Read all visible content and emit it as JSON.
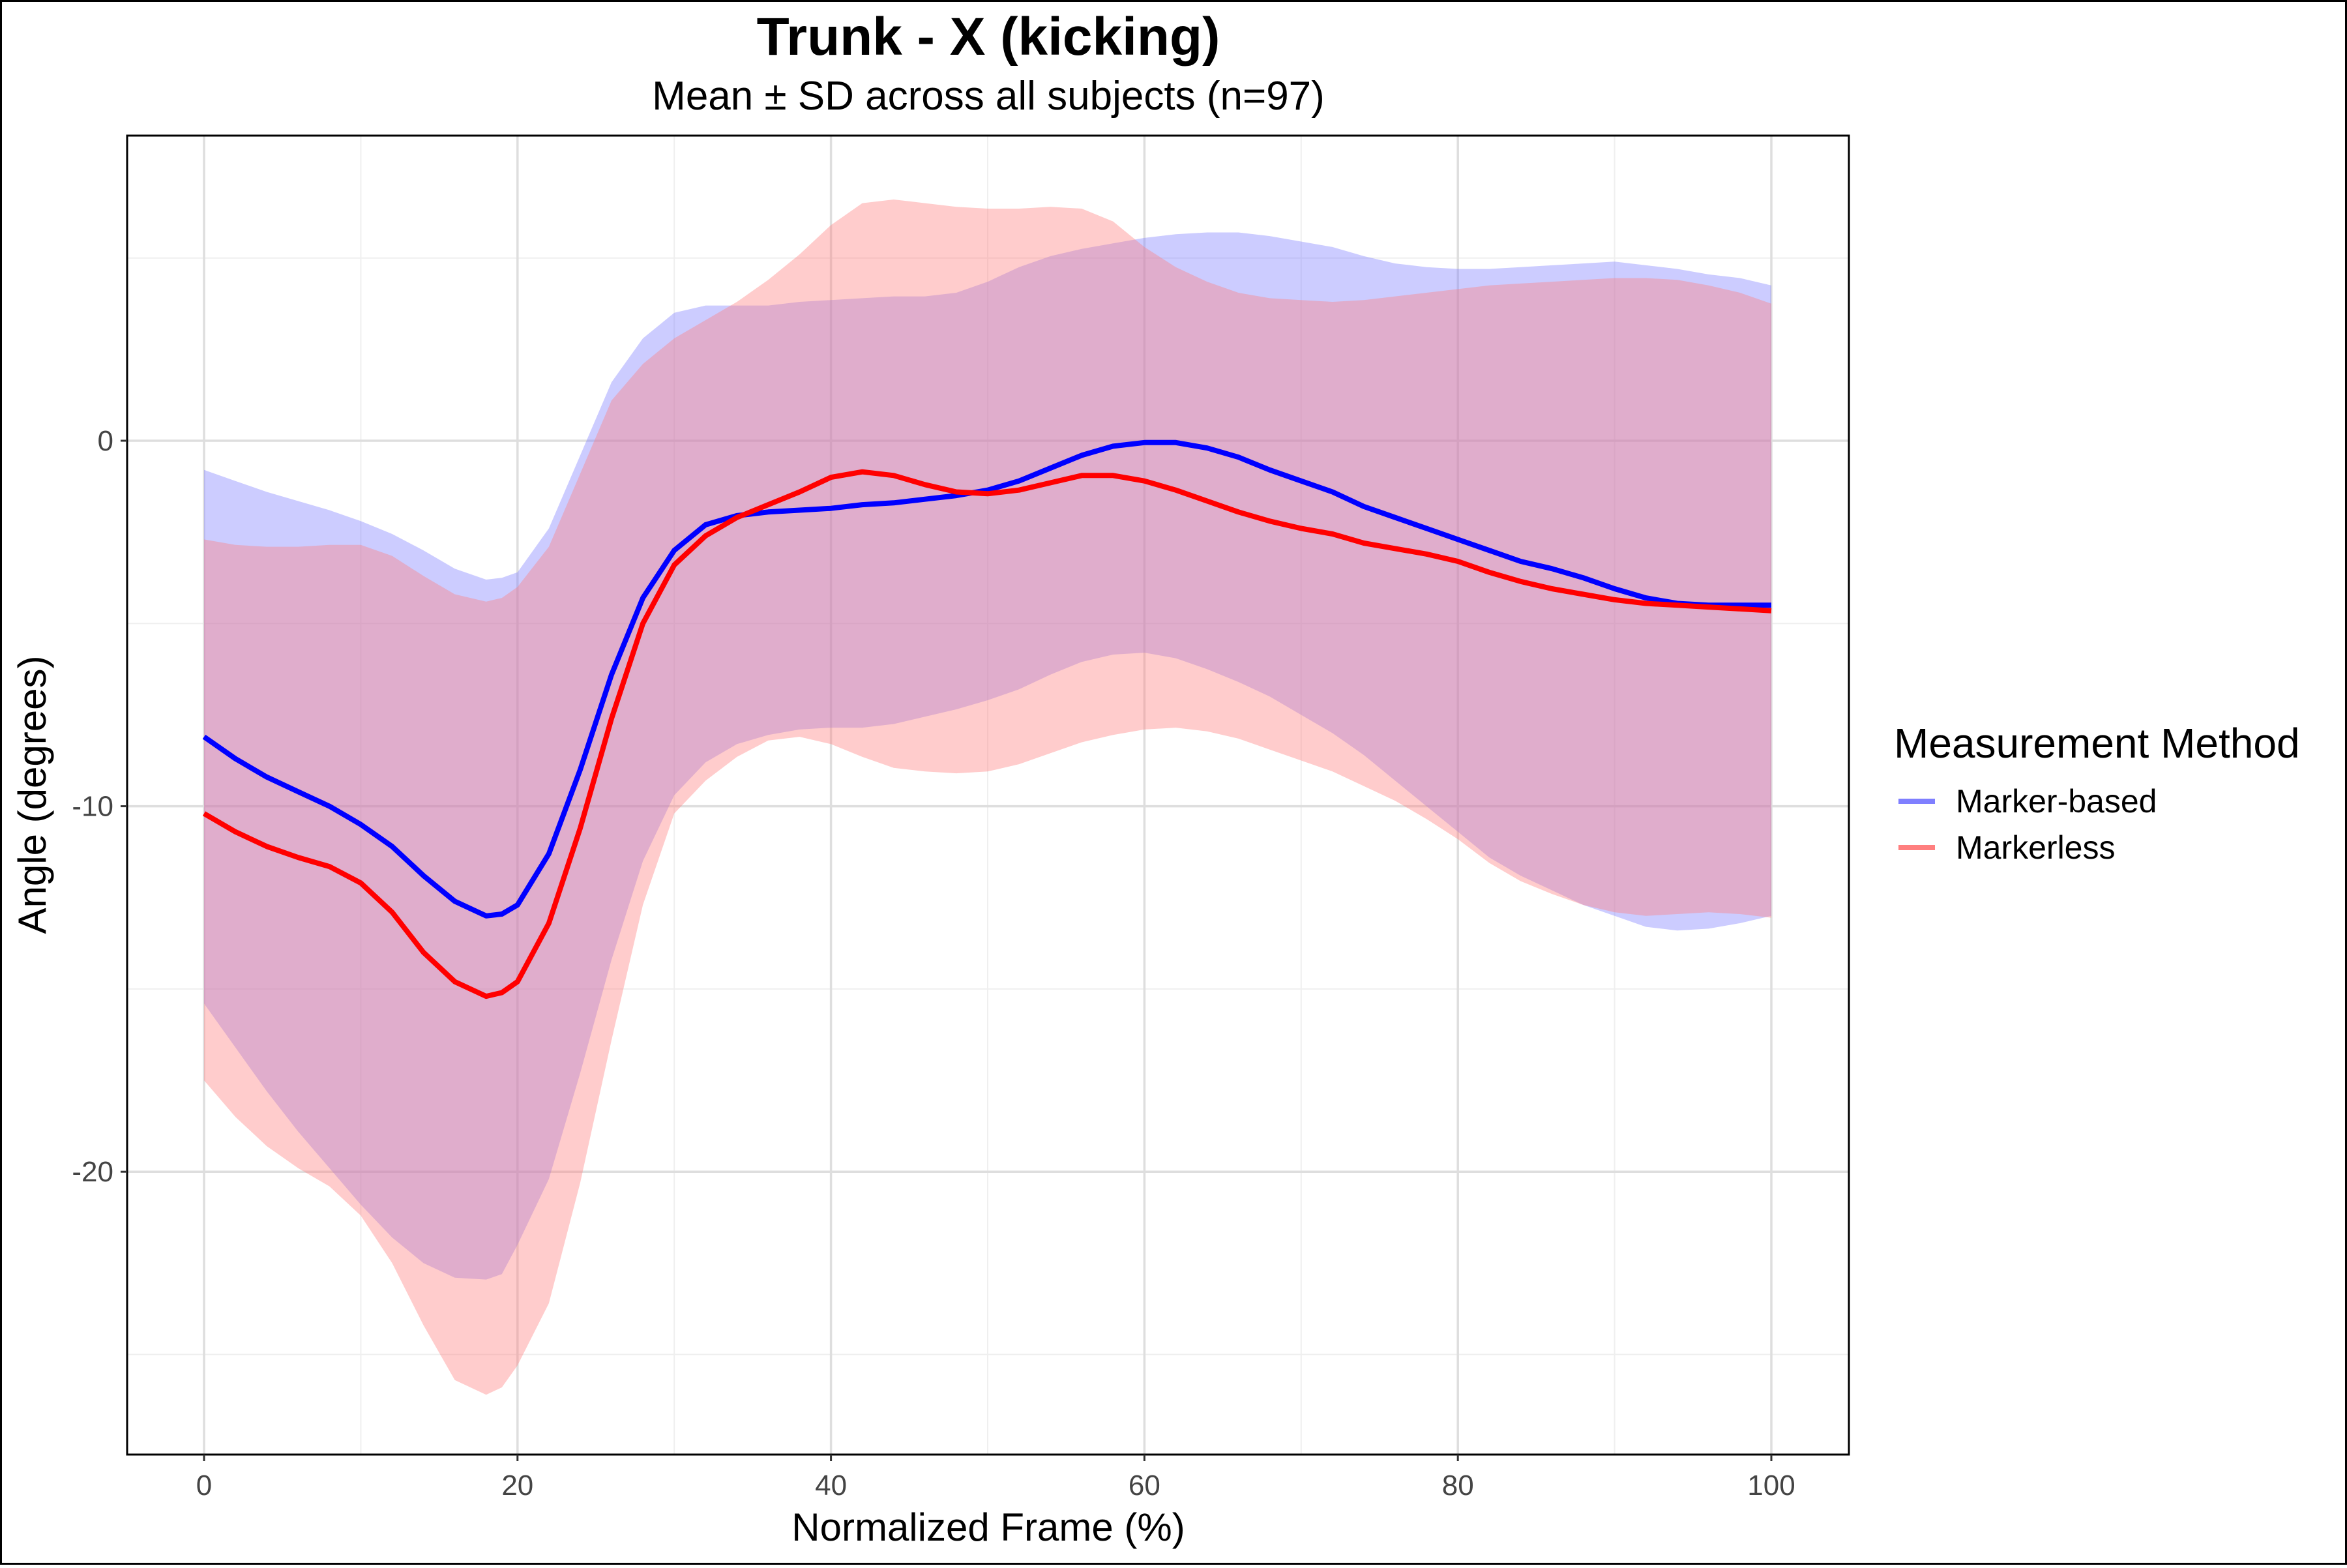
{
  "title": "Trunk - X (kicking)",
  "subtitle": "Mean ± SD across all subjects (n=97)",
  "chart_data": {
    "type": "line",
    "title": "Trunk - X (kicking)",
    "subtitle": "Mean ± SD across all subjects (n=97)",
    "xlabel": "Normalized Frame (%)",
    "ylabel": "Angle (degrees)",
    "xlim": [
      -5,
      105
    ],
    "ylim": [
      -28,
      8.5
    ],
    "x_ticks": [
      0,
      20,
      40,
      60,
      80,
      100
    ],
    "x_tick_labels": [
      "0",
      "20",
      "40",
      "60",
      "80",
      "100"
    ],
    "y_ticks": [
      -20,
      -10,
      0
    ],
    "y_tick_labels": [
      "-20",
      "-10",
      "0"
    ],
    "grid": true,
    "legend": {
      "title": "Measurement Method",
      "position": "right",
      "entries": [
        "Marker-based",
        "Markerless"
      ]
    },
    "x": [
      0,
      2,
      4,
      6,
      8,
      10,
      12,
      14,
      16,
      18,
      19,
      20,
      22,
      24,
      26,
      28,
      30,
      32,
      34,
      36,
      38,
      40,
      42,
      44,
      46,
      48,
      50,
      52,
      54,
      56,
      58,
      60,
      62,
      64,
      66,
      68,
      70,
      72,
      74,
      76,
      78,
      80,
      82,
      84,
      86,
      88,
      90,
      92,
      94,
      96,
      98,
      100
    ],
    "series": [
      {
        "name": "Marker-based",
        "color": "#0000ff",
        "band_color": "#8080ff",
        "mean": [
          -8.1,
          -8.7,
          -9.2,
          -9.6,
          -10.0,
          -10.5,
          -11.1,
          -11.9,
          -12.6,
          -13.0,
          -12.95,
          -12.7,
          -11.3,
          -9.0,
          -6.4,
          -4.3,
          -3.0,
          -2.3,
          -2.05,
          -1.95,
          -1.9,
          -1.85,
          -1.75,
          -1.7,
          -1.6,
          -1.5,
          -1.35,
          -1.1,
          -0.75,
          -0.4,
          -0.15,
          -0.05,
          -0.05,
          -0.2,
          -0.45,
          -0.8,
          -1.1,
          -1.4,
          -1.8,
          -2.1,
          -2.4,
          -2.7,
          -3.0,
          -3.3,
          -3.5,
          -3.75,
          -4.05,
          -4.3,
          -4.45,
          -4.5,
          -4.5,
          -4.5
        ],
        "sd_upper": [
          -0.8,
          -1.1,
          -1.4,
          -1.65,
          -1.9,
          -2.2,
          -2.55,
          -3.0,
          -3.5,
          -3.8,
          -3.75,
          -3.6,
          -2.4,
          -0.4,
          1.6,
          2.8,
          3.5,
          3.7,
          3.7,
          3.7,
          3.8,
          3.85,
          3.9,
          3.95,
          3.95,
          4.05,
          4.35,
          4.75,
          5.05,
          5.25,
          5.4,
          5.55,
          5.65,
          5.7,
          5.7,
          5.6,
          5.45,
          5.3,
          5.05,
          4.85,
          4.75,
          4.7,
          4.7,
          4.75,
          4.8,
          4.85,
          4.9,
          4.8,
          4.7,
          4.55,
          4.45,
          4.25
        ],
        "sd_lower": [
          -15.4,
          -16.6,
          -17.8,
          -18.9,
          -19.9,
          -20.9,
          -21.8,
          -22.5,
          -22.9,
          -22.95,
          -22.8,
          -22.0,
          -20.2,
          -17.3,
          -14.2,
          -11.5,
          -9.7,
          -8.8,
          -8.3,
          -8.05,
          -7.9,
          -7.85,
          -7.85,
          -7.75,
          -7.55,
          -7.35,
          -7.1,
          -6.8,
          -6.4,
          -6.05,
          -5.85,
          -5.8,
          -5.95,
          -6.25,
          -6.6,
          -7.0,
          -7.5,
          -8.0,
          -8.6,
          -9.3,
          -10.0,
          -10.7,
          -11.4,
          -11.9,
          -12.3,
          -12.7,
          -13.0,
          -13.3,
          -13.4,
          -13.35,
          -13.2,
          -13.0
        ]
      },
      {
        "name": "Markerless",
        "color": "#ff0000",
        "band_color": "#ff8080",
        "mean": [
          -10.2,
          -10.7,
          -11.1,
          -11.4,
          -11.65,
          -12.1,
          -12.9,
          -14.0,
          -14.8,
          -15.2,
          -15.1,
          -14.8,
          -13.2,
          -10.6,
          -7.6,
          -5.0,
          -3.4,
          -2.6,
          -2.1,
          -1.75,
          -1.4,
          -1.0,
          -0.85,
          -0.95,
          -1.2,
          -1.4,
          -1.45,
          -1.35,
          -1.15,
          -0.95,
          -0.95,
          -1.1,
          -1.35,
          -1.65,
          -1.95,
          -2.2,
          -2.4,
          -2.55,
          -2.8,
          -2.95,
          -3.1,
          -3.3,
          -3.6,
          -3.85,
          -4.05,
          -4.2,
          -4.35,
          -4.45,
          -4.5,
          -4.55,
          -4.6,
          -4.65
        ],
        "sd_upper": [
          -2.7,
          -2.85,
          -2.9,
          -2.9,
          -2.85,
          -2.85,
          -3.15,
          -3.7,
          -4.2,
          -4.4,
          -4.3,
          -4.0,
          -2.9,
          -0.9,
          1.1,
          2.1,
          2.8,
          3.3,
          3.8,
          4.4,
          5.1,
          5.9,
          6.5,
          6.6,
          6.5,
          6.4,
          6.35,
          6.35,
          6.4,
          6.35,
          6.0,
          5.3,
          4.75,
          4.35,
          4.05,
          3.9,
          3.85,
          3.8,
          3.85,
          3.95,
          4.05,
          4.15,
          4.25,
          4.3,
          4.35,
          4.4,
          4.45,
          4.45,
          4.4,
          4.25,
          4.05,
          3.75
        ],
        "sd_lower": [
          -17.5,
          -18.5,
          -19.3,
          -19.9,
          -20.4,
          -21.2,
          -22.5,
          -24.2,
          -25.7,
          -26.1,
          -25.9,
          -25.3,
          -23.6,
          -20.3,
          -16.4,
          -12.7,
          -10.2,
          -9.3,
          -8.65,
          -8.2,
          -8.1,
          -8.3,
          -8.65,
          -8.95,
          -9.05,
          -9.1,
          -9.05,
          -8.85,
          -8.55,
          -8.25,
          -8.05,
          -7.9,
          -7.85,
          -7.95,
          -8.15,
          -8.45,
          -8.75,
          -9.05,
          -9.45,
          -9.85,
          -10.35,
          -10.9,
          -11.55,
          -12.05,
          -12.4,
          -12.7,
          -12.9,
          -13.0,
          -12.95,
          -12.9,
          -12.95,
          -13.05
        ]
      }
    ]
  }
}
